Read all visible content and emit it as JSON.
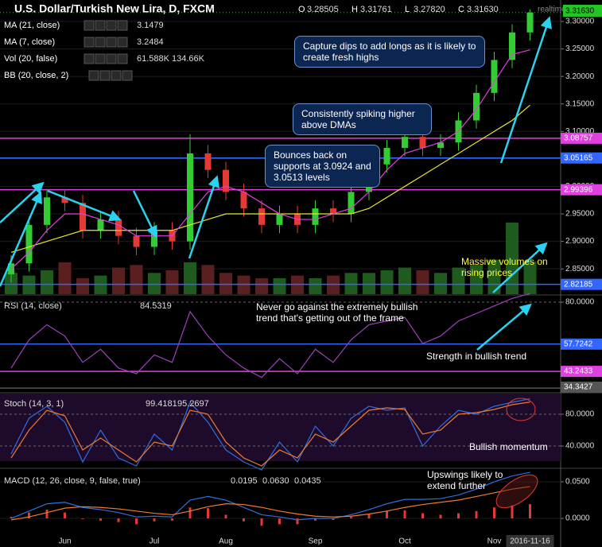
{
  "chart_data": [
    {
      "type": "candlestick",
      "title": "U.S. Dollar/Turkish New Lira, D, FXCM",
      "quote": [
        {
          "label": "O",
          "value": "3.28505"
        },
        {
          "label": "H",
          "value": "3.31761"
        },
        {
          "label": "L",
          "value": "3.27820"
        },
        {
          "label": "C",
          "value": "3.31630"
        }
      ],
      "realtime": "realtime",
      "categories": [
        null,
        null,
        null,
        "Jun",
        null,
        null,
        null,
        null,
        "Jul",
        null,
        null,
        null,
        "Aug",
        null,
        null,
        null,
        null,
        "Sep",
        null,
        null,
        null,
        null,
        "Oct",
        null,
        null,
        null,
        null,
        "Nov",
        null,
        "2016-11-16"
      ],
      "open": [
        2.84,
        2.86,
        2.93,
        2.98,
        2.97,
        2.92,
        2.94,
        2.91,
        2.89,
        2.92,
        2.9,
        3.06,
        3.03,
        2.99,
        2.96,
        2.93,
        2.95,
        2.93,
        2.96,
        2.95,
        2.99,
        3.04,
        3.07,
        3.09,
        3.07,
        3.08,
        3.12,
        3.17,
        3.23,
        3.28
      ],
      "high": [
        2.875,
        2.945,
        2.995,
        2.995,
        2.985,
        2.955,
        2.955,
        2.925,
        2.935,
        2.935,
        3.095,
        3.075,
        3.045,
        3.005,
        2.975,
        2.965,
        2.965,
        2.975,
        2.975,
        3.005,
        3.055,
        3.085,
        3.105,
        3.105,
        3.095,
        3.135,
        3.185,
        3.245,
        3.295,
        3.322
      ],
      "low": [
        2.825,
        2.845,
        2.915,
        2.955,
        2.905,
        2.905,
        2.895,
        2.875,
        2.875,
        2.885,
        2.885,
        3.015,
        2.975,
        2.945,
        2.915,
        2.915,
        2.915,
        2.915,
        2.935,
        2.935,
        2.975,
        3.025,
        3.055,
        3.055,
        3.055,
        3.065,
        3.105,
        3.155,
        3.215,
        3.265
      ],
      "close": [
        2.86,
        2.93,
        2.98,
        2.97,
        2.92,
        2.94,
        2.91,
        2.89,
        2.92,
        2.9,
        3.06,
        3.03,
        2.99,
        2.96,
        2.93,
        2.95,
        2.93,
        2.96,
        2.95,
        2.99,
        3.04,
        3.07,
        3.09,
        3.07,
        3.08,
        3.12,
        3.17,
        3.23,
        3.28,
        3.3163
      ],
      "up_color": "#33cc33",
      "down_color": "#e53935",
      "series": [
        {
          "name": "MA (21, close)",
          "color": "#e6e62e",
          "legend_value": "3.1479",
          "values": [
            2.88,
            2.89,
            2.9,
            2.91,
            2.92,
            2.92,
            2.92,
            2.92,
            2.92,
            2.92,
            2.93,
            2.94,
            2.95,
            2.95,
            2.95,
            2.95,
            2.95,
            2.95,
            2.95,
            2.95,
            2.96,
            2.98,
            3.0,
            3.02,
            3.04,
            3.06,
            3.08,
            3.1,
            3.12,
            3.1479
          ]
        },
        {
          "name": "MA (7, close)",
          "color": "#e040e0",
          "legend_value": "3.2484",
          "values": [
            2.85,
            2.88,
            2.92,
            2.95,
            2.95,
            2.94,
            2.93,
            2.91,
            2.91,
            2.91,
            2.95,
            2.99,
            3.0,
            2.99,
            2.97,
            2.95,
            2.94,
            2.94,
            2.95,
            2.96,
            2.99,
            3.03,
            3.06,
            3.07,
            3.08,
            3.1,
            3.14,
            3.19,
            3.24,
            3.2484
          ]
        }
      ],
      "volume": {
        "name": "Vol (20, false)",
        "legend_values": [
          "61.588K",
          "134.66K"
        ],
        "up_color": "#1f5a1f",
        "down_color": "#5a1f1f",
        "values": [
          40,
          35,
          45,
          60,
          30,
          35,
          50,
          55,
          40,
          45,
          60,
          55,
          40,
          35,
          30,
          30,
          35,
          30,
          35,
          40,
          40,
          45,
          50,
          45,
          40,
          50,
          55,
          65,
          134.66,
          61.588
        ]
      },
      "bb": {
        "name": "BB (20, close, 2)"
      },
      "levels": [
        {
          "value": 3.08757,
          "label": "3.08757",
          "color": "#e040e0"
        },
        {
          "value": 3.05165,
          "label": "3.05165",
          "color": "#3366ff"
        },
        {
          "value": 2.99396,
          "label": "2.99396",
          "color": "#e040e0"
        },
        {
          "value": 2.82185,
          "label": "2.82185",
          "color": "#3366ff"
        }
      ],
      "current": {
        "value": 3.3163,
        "label": "3.31630",
        "color": "#22c622"
      },
      "ylim": [
        2.804,
        3.339
      ],
      "yticks": [
        {
          "value": 2.85,
          "label": "2.85000"
        },
        {
          "value": 2.9,
          "label": "2.90000"
        },
        {
          "value": 2.95,
          "label": "2.95000"
        },
        {
          "value": 3.0,
          "label": "3.00000"
        },
        {
          "value": 3.05,
          "label": "3.05000"
        },
        {
          "value": 3.1,
          "label": "3.10000"
        },
        {
          "value": 3.15,
          "label": "3.15000"
        },
        {
          "value": 3.2,
          "label": "3.20000"
        },
        {
          "value": 3.25,
          "label": "3.25000"
        },
        {
          "value": 3.3,
          "label": "3.30000"
        }
      ],
      "grid": true,
      "annotations": [
        "Capture dips to add longs as it is likely to create fresh highs",
        "Consistently spiking higher above DMAs",
        "Bounces back on supports at 3.0924 and 3.0513 levels",
        "Massive volumes on rising prices"
      ]
    },
    {
      "type": "line",
      "title": "RSI (14, close)",
      "legend_values": [
        "84.5319"
      ],
      "series": [
        {
          "color": "#a040c0",
          "values": [
            45,
            60,
            68,
            62,
            48,
            55,
            45,
            42,
            52,
            48,
            75,
            62,
            52,
            45,
            40,
            50,
            42,
            55,
            48,
            60,
            68,
            70,
            72,
            58,
            62,
            70,
            74,
            78,
            82,
            84.5319
          ]
        }
      ],
      "levels": [
        {
          "value": 57.7242,
          "label": "57.7242",
          "color": "#3366ff"
        },
        {
          "value": 43.2433,
          "label": "43.2433",
          "color": "#e040e0"
        },
        {
          "value": 34.3427,
          "label": "34.3427",
          "color": "#555555"
        }
      ],
      "ylim": [
        32.3,
        83.4
      ],
      "yticks": [
        {
          "value": 80,
          "label": "80.0000"
        }
      ],
      "annotations": [
        "Never go against the extremely bullish trend that's getting out of the frame",
        "Strength in bullish trend"
      ]
    },
    {
      "type": "line",
      "title": "Stoch (14, 3, 1)",
      "legend_values": [
        "99.4181",
        "95.2697"
      ],
      "series": [
        {
          "color": "#2f6fe0",
          "values": [
            30,
            75,
            90,
            70,
            20,
            60,
            25,
            15,
            55,
            35,
            95,
            70,
            35,
            20,
            10,
            45,
            20,
            65,
            40,
            75,
            90,
            85,
            88,
            40,
            65,
            85,
            80,
            90,
            95,
            99.4181
          ]
        },
        {
          "color": "#f07a2a",
          "values": [
            25,
            60,
            85,
            78,
            35,
            50,
            35,
            20,
            45,
            40,
            85,
            80,
            45,
            25,
            15,
            35,
            25,
            55,
            45,
            65,
            85,
            88,
            86,
            55,
            60,
            80,
            82,
            86,
            92,
            95.2697
          ]
        }
      ],
      "ylim": [
        13,
        106
      ],
      "yticks": [
        {
          "value": 80,
          "label": "80.0000"
        },
        {
          "value": 40,
          "label": "40.0000"
        }
      ],
      "annotations": [
        "Bullish momentum"
      ]
    },
    {
      "type": "macd",
      "title": "MACD (12, 26, close, 9, false, true)",
      "legend_values": [
        "0.0195",
        "0.0630",
        "0.0435"
      ],
      "histogram": {
        "color": "#e53935",
        "values": [
          0.002,
          0.008,
          0.012,
          0.008,
          -0.001,
          -0.003,
          -0.005,
          -0.008,
          -0.004,
          -0.003,
          0.015,
          0.014,
          0.005,
          -0.004,
          -0.01,
          -0.008,
          -0.008,
          -0.003,
          -0.002,
          0.002,
          0.006,
          0.01,
          0.011,
          0.007,
          0.005,
          0.007,
          0.01,
          0.015,
          0.018,
          0.0195
        ]
      },
      "series": [
        {
          "color": "#2f6fe0",
          "values": [
            0.0,
            0.01,
            0.02,
            0.022,
            0.015,
            0.012,
            0.008,
            0.002,
            0.003,
            0.002,
            0.025,
            0.03,
            0.025,
            0.015,
            0.005,
            0.002,
            -0.002,
            0.0,
            0.0,
            0.005,
            0.012,
            0.02,
            0.026,
            0.026,
            0.027,
            0.032,
            0.04,
            0.05,
            0.058,
            0.063
          ]
        },
        {
          "color": "#f07a2a",
          "values": [
            -0.002,
            0.002,
            0.008,
            0.014,
            0.016,
            0.015,
            0.013,
            0.01,
            0.007,
            0.005,
            0.01,
            0.016,
            0.02,
            0.019,
            0.015,
            0.01,
            0.006,
            0.003,
            0.002,
            0.003,
            0.006,
            0.01,
            0.015,
            0.019,
            0.022,
            0.025,
            0.03,
            0.035,
            0.04,
            0.0435
          ]
        }
      ],
      "ylim": [
        -0.0217,
        0.0674
      ],
      "yticks": [
        {
          "value": 0.05,
          "label": "0.0500"
        },
        {
          "value": 0,
          "label": "0.0000"
        }
      ],
      "annotations": [
        "Upswings likely to extend further"
      ]
    }
  ]
}
